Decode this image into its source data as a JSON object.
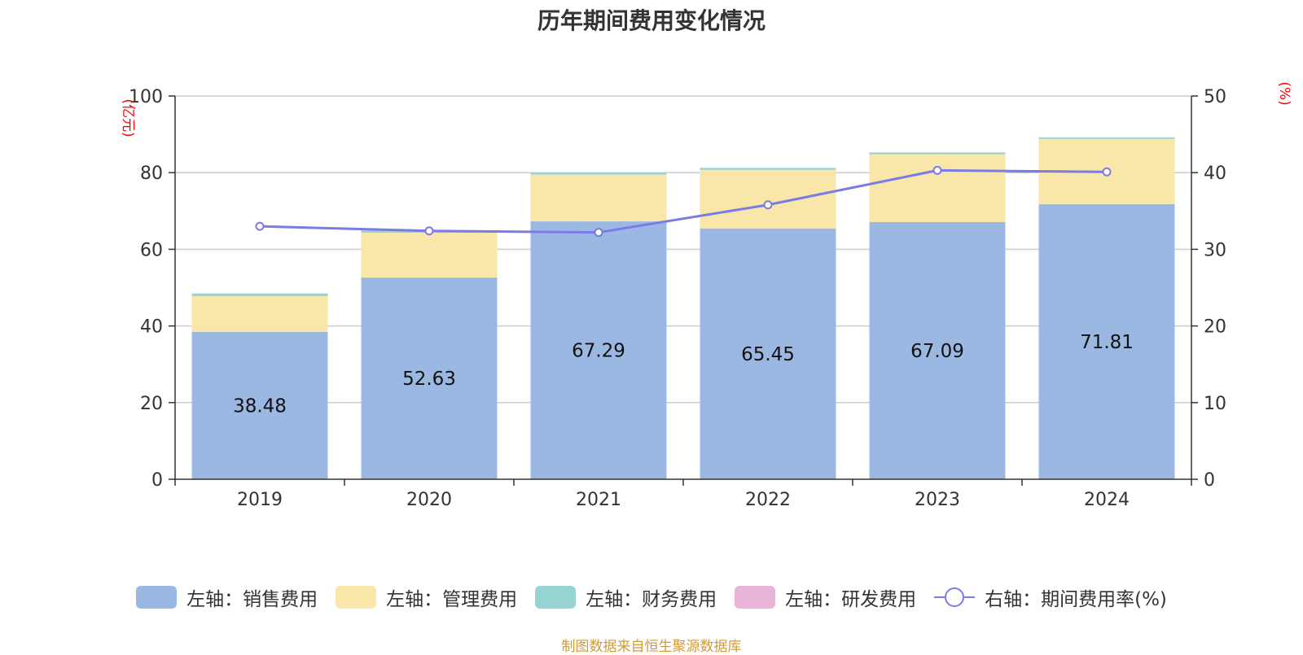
{
  "title": "历年期间费用变化情况",
  "source": "制图数据来自恒生聚源数据库",
  "legend": [
    {
      "label": "左轴：销售费用",
      "color": "#9bb8e2",
      "kind": "bar"
    },
    {
      "label": "左轴：管理费用",
      "color": "#f8e7a9",
      "kind": "bar"
    },
    {
      "label": "左轴：财务费用",
      "color": "#96d3d3",
      "kind": "bar"
    },
    {
      "label": "左轴：研发费用",
      "color": "#e8b5d8",
      "kind": "bar"
    },
    {
      "label": "右轴：期间费用率(%)",
      "color": "#7b7be8",
      "kind": "line"
    }
  ],
  "chart_data": {
    "type": "bar",
    "stacked": true,
    "categories": [
      "2019",
      "2020",
      "2021",
      "2022",
      "2023",
      "2024"
    ],
    "series": [
      {
        "name": "左轴：销售费用",
        "axis": "left",
        "color": "#9bb8e2",
        "values": [
          38.48,
          52.63,
          67.29,
          65.45,
          67.09,
          71.81
        ],
        "labels": [
          "38.48",
          "52.63",
          "67.29",
          "65.45",
          "67.09",
          "71.81"
        ]
      },
      {
        "name": "左轴：管理费用",
        "axis": "left",
        "color": "#f8e7a9",
        "values": [
          9.3,
          11.7,
          12.2,
          15.3,
          17.7,
          17.0
        ]
      },
      {
        "name": "左轴：财务费用",
        "axis": "left",
        "color": "#96d3d3",
        "values": [
          0.7,
          0.6,
          0.5,
          0.5,
          0.5,
          0.4
        ]
      },
      {
        "name": "左轴：研发费用",
        "axis": "left",
        "color": "#e8b5d8",
        "values": [
          0,
          0,
          0,
          0,
          0,
          0
        ]
      },
      {
        "name": "右轴：期间费用率(%)",
        "axis": "right",
        "type": "line",
        "color": "#7b7be8",
        "values": [
          33.0,
          32.4,
          32.2,
          35.8,
          40.3,
          40.1
        ]
      }
    ],
    "y_left": {
      "unit": "(亿元)",
      "ylim": [
        0,
        100
      ],
      "ticks": [
        "0",
        "20",
        "40",
        "60",
        "80",
        "100"
      ]
    },
    "y_right": {
      "unit": "(%)",
      "ylim": [
        0,
        50
      ],
      "ticks": [
        "0",
        "10",
        "20",
        "30",
        "40",
        "50"
      ]
    },
    "grid": true,
    "legend_position": "bottom"
  }
}
